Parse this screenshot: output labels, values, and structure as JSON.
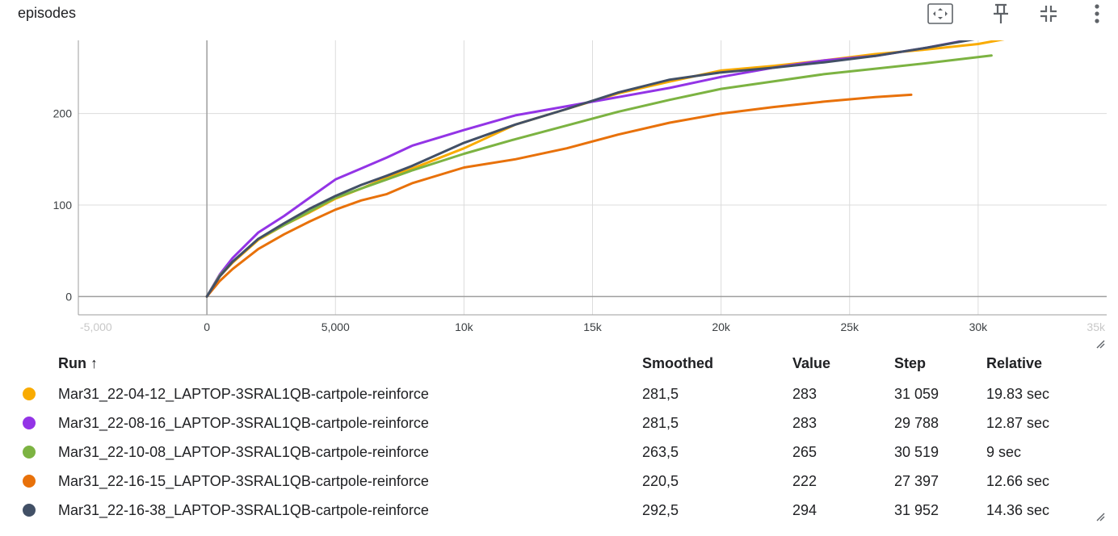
{
  "card": {
    "title": "episodes"
  },
  "toolbar": {
    "items": [
      {
        "name": "fit-domain-icon"
      },
      {
        "name": "pin-icon"
      },
      {
        "name": "collapse-icon"
      },
      {
        "name": "more-vert-icon"
      }
    ]
  },
  "chart_data": {
    "type": "line",
    "title": "",
    "xlabel": "",
    "ylabel": "",
    "xlim": [
      -5000,
      35000
    ],
    "ylim": [
      -20,
      280
    ],
    "x_ticks": [
      -5000,
      0,
      5000,
      10000,
      15000,
      20000,
      25000,
      30000,
      35000
    ],
    "x_tick_labels": [
      "-5,000",
      "0",
      "5,000",
      "10k",
      "15k",
      "20k",
      "25k",
      "30k",
      "35k"
    ],
    "y_ticks": [
      0,
      100,
      200
    ],
    "y_tick_labels": [
      "0",
      "100",
      "200"
    ],
    "grid": true,
    "series": [
      {
        "name": "Mar31_22-04-12_LAPTOP-3SRAL1QB-cartpole-reinforce",
        "color": "#f9ab00",
        "x": [
          0,
          500,
          1000,
          2000,
          3000,
          4000,
          5000,
          6000,
          7000,
          8000,
          10000,
          12000,
          14000,
          16000,
          18000,
          20000,
          22000,
          24000,
          26000,
          28000,
          30000,
          31059
        ],
        "y": [
          0,
          22,
          37,
          62,
          78,
          92,
          107,
          118,
          130,
          140,
          162,
          188,
          205,
          222,
          235,
          247,
          252,
          258,
          265,
          270,
          276,
          281.5
        ]
      },
      {
        "name": "Mar31_22-08-16_LAPTOP-3SRAL1QB-cartpole-reinforce",
        "color": "#9334e6",
        "x": [
          0,
          500,
          1000,
          2000,
          3000,
          4000,
          5000,
          6000,
          7000,
          8000,
          10000,
          12000,
          14000,
          16000,
          18000,
          20000,
          22000,
          24000,
          26000,
          28000,
          29788
        ],
        "y": [
          0,
          24,
          42,
          70,
          88,
          108,
          128,
          140,
          152,
          165,
          182,
          198,
          208,
          218,
          228,
          240,
          250,
          258,
          263,
          272,
          281.5
        ]
      },
      {
        "name": "Mar31_22-10-08_LAPTOP-3SRAL1QB-cartpole-reinforce",
        "color": "#7cb342",
        "x": [
          0,
          500,
          1000,
          2000,
          3000,
          4000,
          5000,
          6000,
          7000,
          8000,
          10000,
          12000,
          14000,
          16000,
          18000,
          20000,
          22000,
          24000,
          26000,
          28000,
          30519
        ],
        "y": [
          0,
          23,
          38,
          63,
          78,
          93,
          108,
          118,
          128,
          138,
          156,
          172,
          187,
          202,
          215,
          227,
          235,
          243,
          249,
          255,
          263.5
        ]
      },
      {
        "name": "Mar31_22-16-15_LAPTOP-3SRAL1QB-cartpole-reinforce",
        "color": "#e8710a",
        "x": [
          0,
          500,
          1000,
          2000,
          3000,
          4000,
          5000,
          6000,
          7000,
          8000,
          10000,
          12000,
          14000,
          16000,
          18000,
          20000,
          22000,
          24000,
          26000,
          27397
        ],
        "y": [
          0,
          17,
          30,
          52,
          68,
          82,
          95,
          105,
          112,
          124,
          141,
          150,
          162,
          177,
          190,
          200,
          207,
          213,
          218,
          220.5
        ]
      },
      {
        "name": "Mar31_22-16-38_LAPTOP-3SRAL1QB-cartpole-reinforce",
        "color": "#425066",
        "x": [
          0,
          500,
          1000,
          2000,
          3000,
          4000,
          5000,
          6000,
          7000,
          8000,
          10000,
          12000,
          14000,
          16000,
          18000,
          20000,
          22000,
          24000,
          26000,
          28000,
          30000,
          31952
        ],
        "y": [
          0,
          22,
          38,
          63,
          80,
          96,
          110,
          122,
          132,
          143,
          168,
          188,
          205,
          223,
          237,
          245,
          250,
          256,
          263,
          272,
          282,
          292.5
        ]
      }
    ]
  },
  "legend": {
    "headers": {
      "run": "Run ↑",
      "smoothed": "Smoothed",
      "value": "Value",
      "step": "Step",
      "relative": "Relative"
    },
    "rows": [
      {
        "color": "#f9ab00",
        "run": "Mar31_22-04-12_LAPTOP-3SRAL1QB-cartpole-reinforce",
        "smoothed": "281,5",
        "value": "283",
        "step": "31 059",
        "relative": "19.83 sec"
      },
      {
        "color": "#9334e6",
        "run": "Mar31_22-08-16_LAPTOP-3SRAL1QB-cartpole-reinforce",
        "smoothed": "281,5",
        "value": "283",
        "step": "29 788",
        "relative": "12.87 sec"
      },
      {
        "color": "#7cb342",
        "run": "Mar31_22-10-08_LAPTOP-3SRAL1QB-cartpole-reinforce",
        "smoothed": "263,5",
        "value": "265",
        "step": "30 519",
        "relative": "9 sec"
      },
      {
        "color": "#e8710a",
        "run": "Mar31_22-16-15_LAPTOP-3SRAL1QB-cartpole-reinforce",
        "smoothed": "220,5",
        "value": "222",
        "step": "27 397",
        "relative": "12.66 sec"
      },
      {
        "color": "#425066",
        "run": "Mar31_22-16-38_LAPTOP-3SRAL1QB-cartpole-reinforce",
        "smoothed": "292,5",
        "value": "294",
        "step": "31 952",
        "relative": "14.36 sec"
      }
    ]
  }
}
